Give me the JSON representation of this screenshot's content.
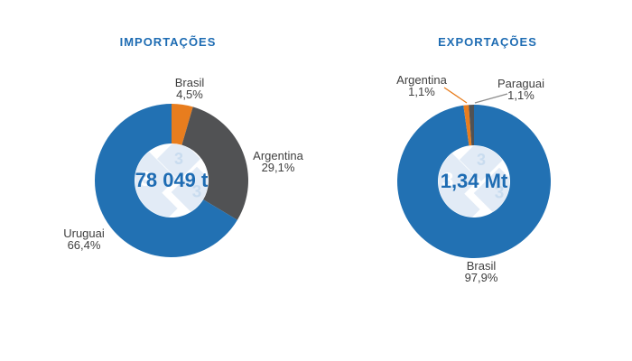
{
  "colors": {
    "blue": "#2271B3",
    "orange": "#E87D1E",
    "dark_gray": "#515254",
    "title_blue": "#1E6CB3",
    "label_gray": "#3F3F3F",
    "leader_gray": "#8C8C8C",
    "watermark_diamond": "#E2EBF6",
    "watermark_glyph_light": "#C9DCEF",
    "watermark_glyph_white": "#FFFFFF"
  },
  "watermark": {
    "glyph": "3"
  },
  "chart_data": [
    {
      "type": "pie",
      "subtype": "donut",
      "title": "IMPORTAÇÕES",
      "center_label": "78 049 t",
      "start_angle_deg": 0,
      "direction": "clockwise",
      "legend_position": "labels-around-slices",
      "slices": [
        {
          "label": "Brasil",
          "value_pct": 4.5,
          "pct_text": "4,5%",
          "color": "#E87D1E"
        },
        {
          "label": "Argentina",
          "value_pct": 29.1,
          "pct_text": "29,1%",
          "color": "#515254"
        },
        {
          "label": "Uruguai",
          "value_pct": 66.4,
          "pct_text": "66,4%",
          "color": "#2271B3"
        }
      ]
    },
    {
      "type": "pie",
      "subtype": "donut",
      "title": "EXPORTAÇÕES",
      "center_label": "1,34 Mt",
      "start_angle_deg": 0,
      "direction": "clockwise",
      "legend_position": "labels-around-slices",
      "slices": [
        {
          "label": "Brasil",
          "value_pct": 97.9,
          "pct_text": "97,9%",
          "color": "#2271B3"
        },
        {
          "label": "Argentina",
          "value_pct": 1.1,
          "pct_text": "1,1%",
          "color": "#E87D1E"
        },
        {
          "label": "Paraguai",
          "value_pct": 1.1,
          "pct_text": "1,1%",
          "color": "#515254"
        }
      ]
    }
  ]
}
